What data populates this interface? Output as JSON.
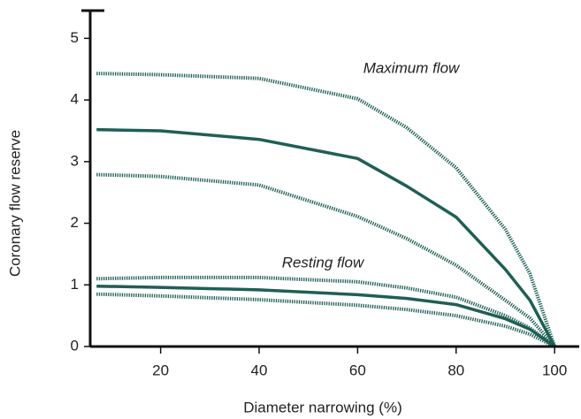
{
  "chart_data": {
    "type": "line",
    "x_label": "Diameter narrowing (%)",
    "y_label": "Coronary flow reserve",
    "annotations": [
      "Maximum flow",
      "Resting flow"
    ],
    "x": [
      7,
      20,
      40,
      60,
      70,
      80,
      90,
      95,
      100
    ],
    "series": [
      {
        "color": "#1f5f55",
        "style": "dotted",
        "values": [
          4.43,
          4.41,
          4.35,
          4.02,
          3.55,
          2.9,
          1.9,
          1.18,
          0
        ]
      },
      {
        "color": "#1f5f55",
        "style": "solid",
        "values": [
          3.52,
          3.5,
          3.36,
          3.05,
          2.6,
          2.1,
          1.25,
          0.75,
          0
        ]
      },
      {
        "color": "#1f5f55",
        "style": "dotted",
        "values": [
          2.79,
          2.76,
          2.62,
          2.11,
          1.75,
          1.32,
          0.75,
          0.46,
          0
        ]
      },
      {
        "color": "#1f5f55",
        "style": "dotted",
        "values": [
          1.1,
          1.12,
          1.12,
          1.05,
          0.95,
          0.8,
          0.5,
          0.3,
          0
        ]
      },
      {
        "color": "#1f5f55",
        "style": "solid",
        "values": [
          0.98,
          0.96,
          0.92,
          0.84,
          0.78,
          0.68,
          0.45,
          0.28,
          0
        ]
      },
      {
        "color": "#1f5f55",
        "style": "dotted",
        "values": [
          0.85,
          0.82,
          0.76,
          0.67,
          0.6,
          0.5,
          0.33,
          0.2,
          0
        ]
      }
    ],
    "xlim": [
      5.7,
      105
    ],
    "xticks": [
      20,
      40,
      60,
      80,
      100
    ],
    "ylim": [
      0,
      5.45
    ],
    "yticks": [
      0,
      1,
      2,
      3,
      4,
      5
    ],
    "grid": false
  }
}
